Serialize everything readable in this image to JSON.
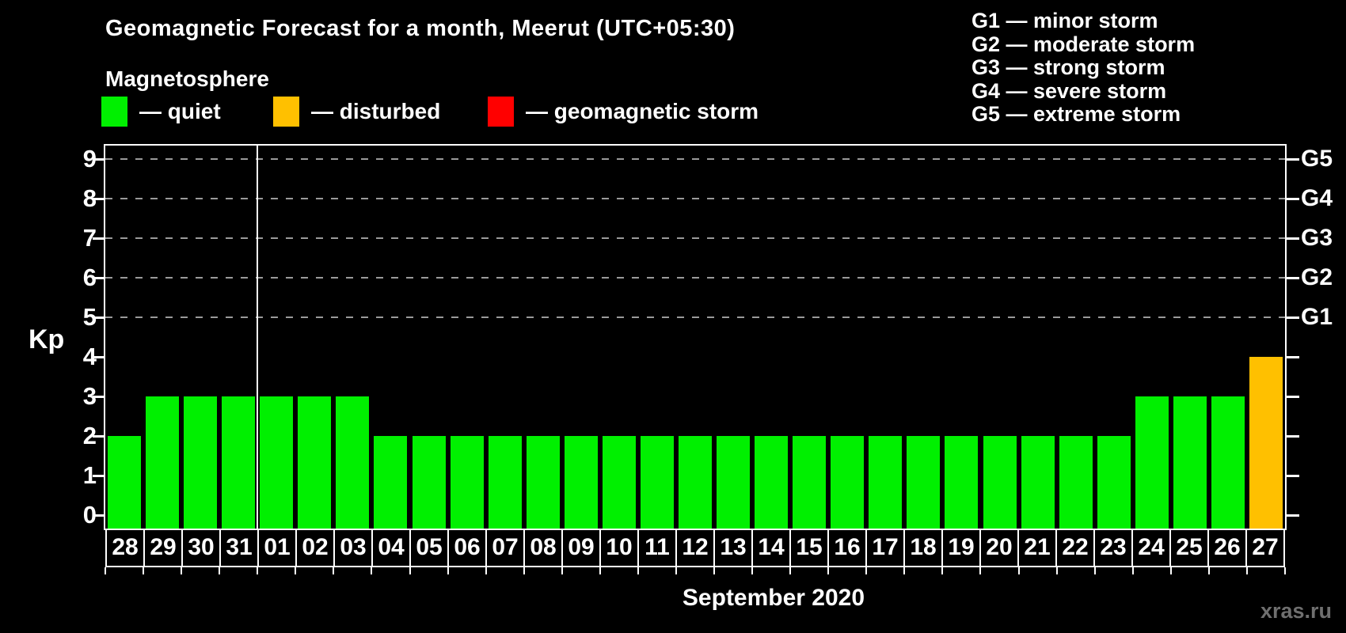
{
  "header": {
    "title": "Geomagnetic Forecast for a month, Meerut (UTC+05:30)",
    "subtitle": "Magnetosphere"
  },
  "legend": {
    "items": [
      {
        "label": "— quiet",
        "status": "quiet"
      },
      {
        "label": "— disturbed",
        "status": "disturbed"
      },
      {
        "label": "— geomagnetic storm",
        "status": "storm"
      }
    ]
  },
  "g_legend": {
    "items": [
      "G1 — minor storm",
      "G2 — moderate storm",
      "G3 — strong storm",
      "G4 — severe storm",
      "G5 — extreme storm"
    ]
  },
  "colors": {
    "quiet": "#00f000",
    "disturbed": "#ffc000",
    "storm": "#ff0000",
    "grid": "#9a9a9a",
    "frame": "#ffffff",
    "background": "#000000",
    "watermark": "#6f6f6f"
  },
  "chart_data": {
    "type": "bar",
    "title": "Geomagnetic Forecast for a month, Meerut (UTC+05:30)",
    "ylabel": "Kp",
    "xlabel": "September 2020",
    "ylim": [
      0,
      9
    ],
    "y_ticks": [
      0,
      1,
      2,
      3,
      4,
      5,
      6,
      7,
      8,
      9
    ],
    "gridlines_at": [
      5,
      6,
      7,
      8,
      9
    ],
    "grid": "dashed, horizontal, at Kp 5-9 only",
    "legend_position": "top-left and top-right",
    "month_divider_after_index": 3,
    "g_axis": [
      {
        "kp": 5,
        "label": "G1"
      },
      {
        "kp": 6,
        "label": "G2"
      },
      {
        "kp": 7,
        "label": "G3"
      },
      {
        "kp": 8,
        "label": "G4"
      },
      {
        "kp": 9,
        "label": "G5"
      }
    ],
    "days": [
      {
        "label": "28",
        "kp": 2,
        "status": "quiet"
      },
      {
        "label": "29",
        "kp": 3,
        "status": "quiet"
      },
      {
        "label": "30",
        "kp": 3,
        "status": "quiet"
      },
      {
        "label": "31",
        "kp": 3,
        "status": "quiet"
      },
      {
        "label": "01",
        "kp": 3,
        "status": "quiet"
      },
      {
        "label": "02",
        "kp": 3,
        "status": "quiet"
      },
      {
        "label": "03",
        "kp": 3,
        "status": "quiet"
      },
      {
        "label": "04",
        "kp": 2,
        "status": "quiet"
      },
      {
        "label": "05",
        "kp": 2,
        "status": "quiet"
      },
      {
        "label": "06",
        "kp": 2,
        "status": "quiet"
      },
      {
        "label": "07",
        "kp": 2,
        "status": "quiet"
      },
      {
        "label": "08",
        "kp": 2,
        "status": "quiet"
      },
      {
        "label": "09",
        "kp": 2,
        "status": "quiet"
      },
      {
        "label": "10",
        "kp": 2,
        "status": "quiet"
      },
      {
        "label": "11",
        "kp": 2,
        "status": "quiet"
      },
      {
        "label": "12",
        "kp": 2,
        "status": "quiet"
      },
      {
        "label": "13",
        "kp": 2,
        "status": "quiet"
      },
      {
        "label": "14",
        "kp": 2,
        "status": "quiet"
      },
      {
        "label": "15",
        "kp": 2,
        "status": "quiet"
      },
      {
        "label": "16",
        "kp": 2,
        "status": "quiet"
      },
      {
        "label": "17",
        "kp": 2,
        "status": "quiet"
      },
      {
        "label": "18",
        "kp": 2,
        "status": "quiet"
      },
      {
        "label": "19",
        "kp": 2,
        "status": "quiet"
      },
      {
        "label": "20",
        "kp": 2,
        "status": "quiet"
      },
      {
        "label": "21",
        "kp": 2,
        "status": "quiet"
      },
      {
        "label": "22",
        "kp": 2,
        "status": "quiet"
      },
      {
        "label": "23",
        "kp": 2,
        "status": "quiet"
      },
      {
        "label": "24",
        "kp": 3,
        "status": "quiet"
      },
      {
        "label": "25",
        "kp": 3,
        "status": "quiet"
      },
      {
        "label": "26",
        "kp": 3,
        "status": "quiet"
      },
      {
        "label": "27",
        "kp": 4,
        "status": "disturbed"
      }
    ]
  },
  "footer": {
    "month_label": "September 2020",
    "watermark": "xras.ru"
  }
}
